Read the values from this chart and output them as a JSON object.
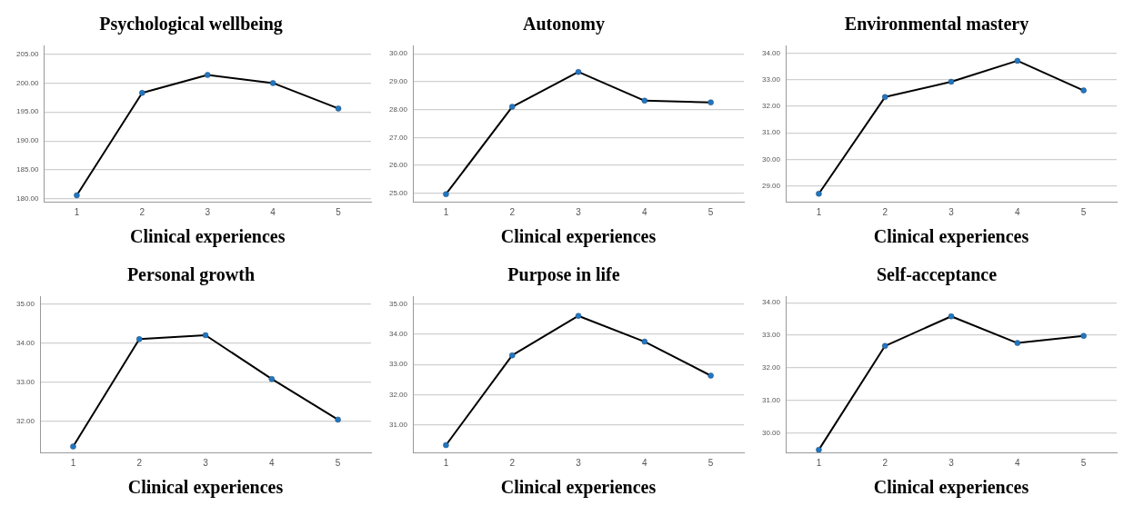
{
  "chart_data": [
    {
      "type": "line",
      "title": "Psychological wellbeing",
      "xlabel": "Clinical experiences",
      "categories": [
        "1",
        "2",
        "3",
        "4",
        "5"
      ],
      "series": [
        {
          "color": "#000000",
          "values": [
            180.6,
            198.3,
            201.4,
            200.0,
            195.6
          ]
        }
      ],
      "ylim": [
        179.5,
        206.5
      ],
      "yticks": [
        {
          "value": 180,
          "label": "180.00"
        },
        {
          "value": 185,
          "label": "185.00"
        },
        {
          "value": 190,
          "label": "190.00"
        },
        {
          "value": 195,
          "label": "195.00"
        },
        {
          "value": 200,
          "label": "200.00"
        },
        {
          "value": 205,
          "label": "205.00"
        }
      ],
      "grid": "y",
      "marker": "circle"
    },
    {
      "type": "line",
      "title": "Autonomy",
      "xlabel": "Clinical experiences",
      "categories": [
        "1",
        "2",
        "3",
        "4",
        "5"
      ],
      "series": [
        {
          "color": "#000000",
          "values": [
            24.97,
            28.1,
            29.35,
            28.32,
            28.26
          ]
        }
      ],
      "ylim": [
        24.7,
        30.3
      ],
      "yticks": [
        {
          "value": 25,
          "label": "25.00"
        },
        {
          "value": 26,
          "label": "26.00"
        },
        {
          "value": 27,
          "label": "27.00"
        },
        {
          "value": 28,
          "label": "28.00"
        },
        {
          "value": 29,
          "label": "29.00"
        },
        {
          "value": 30,
          "label": "30.00"
        }
      ],
      "grid": "y",
      "marker": "circle"
    },
    {
      "type": "line",
      "title": "Environmental mastery",
      "xlabel": "Clinical experiences",
      "categories": [
        "1",
        "2",
        "3",
        "4",
        "5"
      ],
      "series": [
        {
          "color": "#000000",
          "values": [
            28.7,
            32.35,
            32.93,
            33.72,
            32.6
          ]
        }
      ],
      "ylim": [
        28.4,
        34.3
      ],
      "yticks": [
        {
          "value": 29,
          "label": "29.00"
        },
        {
          "value": 30,
          "label": "30.00"
        },
        {
          "value": 31,
          "label": "31.00"
        },
        {
          "value": 32,
          "label": "32.00"
        },
        {
          "value": 33,
          "label": "33.00"
        },
        {
          "value": 34,
          "label": "34.00"
        }
      ],
      "grid": "y",
      "marker": "circle"
    },
    {
      "type": "line",
      "title": "Personal growth",
      "xlabel": "Clinical experiences",
      "categories": [
        "1",
        "2",
        "3",
        "4",
        "5"
      ],
      "series": [
        {
          "color": "#000000",
          "values": [
            31.35,
            34.1,
            34.2,
            33.08,
            32.04
          ]
        }
      ],
      "ylim": [
        31.2,
        35.2
      ],
      "yticks": [
        {
          "value": 32,
          "label": "32.00"
        },
        {
          "value": 33,
          "label": "33.00"
        },
        {
          "value": 34,
          "label": "34.00"
        },
        {
          "value": 35,
          "label": "35.00"
        }
      ],
      "grid": "y",
      "marker": "circle"
    },
    {
      "type": "line",
      "title": "Purpose in life",
      "xlabel": "Clinical experiences",
      "categories": [
        "1",
        "2",
        "3",
        "4",
        "5"
      ],
      "series": [
        {
          "color": "#000000",
          "values": [
            30.34,
            33.3,
            34.6,
            33.75,
            32.63
          ]
        }
      ],
      "ylim": [
        30.1,
        35.25
      ],
      "yticks": [
        {
          "value": 31,
          "label": "31.00"
        },
        {
          "value": 32,
          "label": "32.00"
        },
        {
          "value": 33,
          "label": "33.00"
        },
        {
          "value": 34,
          "label": "34.00"
        },
        {
          "value": 35,
          "label": "35.00"
        }
      ],
      "grid": "y",
      "marker": "circle"
    },
    {
      "type": "line",
      "title": "Self-acceptance",
      "xlabel": "Clinical experiences",
      "categories": [
        "1",
        "2",
        "3",
        "4",
        "5"
      ],
      "series": [
        {
          "color": "#000000",
          "values": [
            29.48,
            32.67,
            33.58,
            32.76,
            32.98
          ]
        }
      ],
      "ylim": [
        29.4,
        34.2
      ],
      "yticks": [
        {
          "value": 30,
          "label": "30.00"
        },
        {
          "value": 31,
          "label": "31.00"
        },
        {
          "value": 32,
          "label": "32.00"
        },
        {
          "value": 33,
          "label": "33.00"
        },
        {
          "value": 34,
          "label": "34.00"
        }
      ],
      "grid": "y",
      "marker": "circle"
    }
  ]
}
